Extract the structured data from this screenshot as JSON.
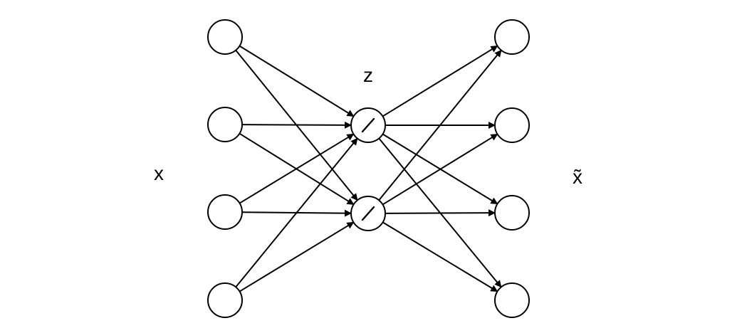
{
  "labels": {
    "input": "x",
    "latent": "z",
    "output": "x̃"
  },
  "diagram": {
    "input_nodes": 4,
    "hidden_nodes": 2,
    "output_nodes": 4,
    "hidden_node_glyph": "slash-icon",
    "connectivity": "fully-connected",
    "stroke_color": "#000000",
    "fill_color": "#ffffff"
  }
}
